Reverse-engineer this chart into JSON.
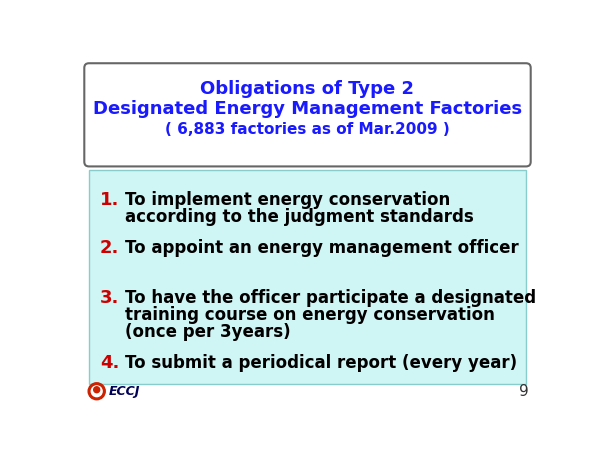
{
  "title_line1": "Obligations of Type 2",
  "title_line2": "Designated Energy Management Factories",
  "title_line3": "( 6,883 factories as of Mar.2009 )",
  "title_color": "#1a1aff",
  "bg_color": "#ffffff",
  "content_bg_color": "#d0f5f5",
  "items": [
    {
      "number": "1.",
      "lines": [
        "To implement energy conservation",
        "according to the judgment standards"
      ]
    },
    {
      "number": "2.",
      "lines": [
        "To appoint an energy management officer"
      ]
    },
    {
      "number": "3.",
      "lines": [
        "To have the officer participate a designated",
        "training course on energy conservation",
        "(once per 3years)"
      ]
    },
    {
      "number": "4.",
      "lines": [
        "To submit a periodical report (every year)"
      ]
    }
  ],
  "number_color": "#cc0000",
  "text_color": "#000000",
  "footer_text": "ECCJ",
  "page_number": "9",
  "title_box_border_color": "#666666",
  "content_border_color": "#88cccc",
  "title_font_size": 13,
  "subtitle_font_size": 13,
  "title3_font_size": 11,
  "item_num_font_size": 13,
  "item_text_font_size": 12
}
